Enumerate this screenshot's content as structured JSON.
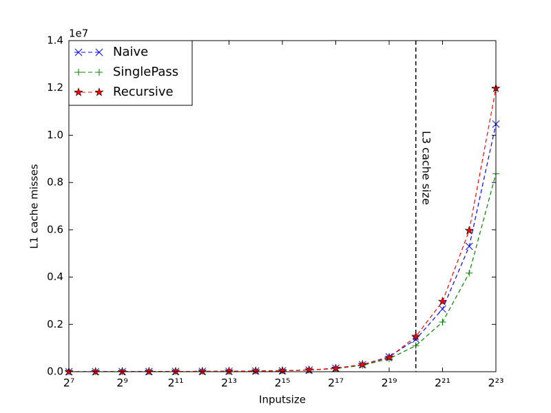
{
  "chart_data": {
    "type": "line",
    "xlabel": "Inputsize",
    "ylabel": "L1 cache misses",
    "y_offset_label": "1e7",
    "x": [
      128,
      256,
      512,
      1024,
      2048,
      4096,
      8192,
      16384,
      32768,
      65536,
      131072,
      262144,
      524288,
      1048576,
      2097152,
      4194304,
      8388608
    ],
    "xscale": "log2",
    "series": [
      {
        "name": "Naive",
        "color": "#0000ff",
        "marker": "x",
        "values": [
          0.0001,
          0.0002,
          0.0004,
          0.0007,
          0.001,
          0.0015,
          0.002,
          0.003,
          0.004,
          0.007,
          0.015,
          0.03,
          0.063,
          0.137,
          0.265,
          0.53,
          1.047
        ]
      },
      {
        "name": "SinglePass",
        "color": "#008000",
        "marker": "+",
        "values": [
          0.0001,
          0.0002,
          0.0004,
          0.0007,
          0.001,
          0.0015,
          0.002,
          0.003,
          0.004,
          0.007,
          0.013,
          0.027,
          0.055,
          0.11,
          0.21,
          0.417,
          0.837
        ]
      },
      {
        "name": "Recursive",
        "color": "#ff0000",
        "marker": "*",
        "values": [
          0.0001,
          0.0002,
          0.0004,
          0.0007,
          0.001,
          0.0015,
          0.002,
          0.003,
          0.004,
          0.007,
          0.014,
          0.03,
          0.06,
          0.149,
          0.297,
          0.597,
          1.198
        ]
      }
    ],
    "xlim": [
      128,
      8388608
    ],
    "xticks": [
      {
        "value": 128,
        "label": "2⁷"
      },
      {
        "value": 512,
        "label": "2⁹"
      },
      {
        "value": 2048,
        "label": "2¹¹"
      },
      {
        "value": 8192,
        "label": "2¹³"
      },
      {
        "value": 32768,
        "label": "2¹⁵"
      },
      {
        "value": 131072,
        "label": "2¹⁷"
      },
      {
        "value": 524288,
        "label": "2¹⁹"
      },
      {
        "value": 2097152,
        "label": "2²¹"
      },
      {
        "value": 8388608,
        "label": "2²³"
      }
    ],
    "ylim": [
      0,
      1.4
    ],
    "yticks": [
      {
        "value": 0,
        "label": "0.0"
      },
      {
        "value": 0.2,
        "label": "0.2"
      },
      {
        "value": 0.4,
        "label": "0.4"
      },
      {
        "value": 0.6,
        "label": "0.6"
      },
      {
        "value": 0.8,
        "label": "0.8"
      },
      {
        "value": 1,
        "label": "1.0"
      },
      {
        "value": 1.2,
        "label": "1.2"
      },
      {
        "value": 1.4,
        "label": "1.4"
      }
    ],
    "vline": {
      "x": 1048576,
      "label": "L3 cache size",
      "color": "#000000"
    },
    "legend": "upper left",
    "grid": false
  }
}
